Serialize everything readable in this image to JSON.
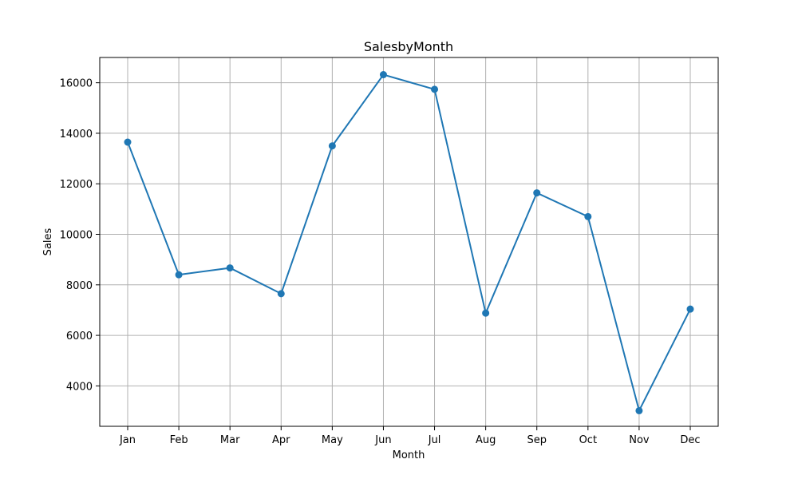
{
  "chart_data": {
    "type": "line",
    "title": "SalesbyMonth",
    "xlabel": "Month",
    "ylabel": "Sales",
    "categories": [
      "Jan",
      "Feb",
      "Mar",
      "Apr",
      "May",
      "Jun",
      "Jul",
      "Aug",
      "Sep",
      "Oct",
      "Nov",
      "Dec"
    ],
    "series": [
      {
        "values": [
          13650,
          8400,
          8670,
          7650,
          13500,
          16320,
          15740,
          6880,
          11640,
          10700,
          3020,
          7040
        ],
        "color": "#1f77b4",
        "marker": "circle"
      }
    ],
    "ylim": [
      2400,
      17000
    ],
    "yticks": [
      4000,
      6000,
      8000,
      10000,
      12000,
      14000,
      16000
    ],
    "grid": true
  }
}
